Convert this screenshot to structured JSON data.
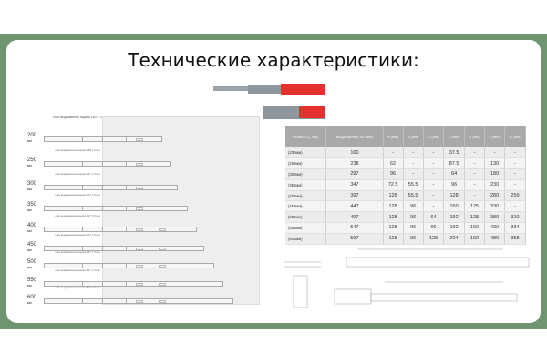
{
  "title": "Технические характеристики:",
  "diagram": {
    "top_caption": "max выдвижение ящика 160 ± 3 мм",
    "depth_caption": "min глубина корпуса = длина направляющей + 10 мм",
    "unit": "мм",
    "rows": [
      {
        "size": "200",
        "ext": ""
      },
      {
        "size": "250",
        "ext": "max выдвижение ящика 238 ± 3 мм"
      },
      {
        "size": "300",
        "ext": "max выдвижение ящика 297 ± 3 мм"
      },
      {
        "size": "350",
        "ext": "max выдвижение ящика 347 ± 3 мм"
      },
      {
        "size": "400",
        "ext": "max выдвижение ящика 397 ± 3 мм"
      },
      {
        "size": "450",
        "ext": "max выдвижение ящика 447 ± 3 мм"
      },
      {
        "size": "500",
        "ext": "max выдвижение ящика 497 ± 3 мм"
      },
      {
        "size": "550",
        "ext": "max выдвижение ящика 547 ± 3 мм"
      },
      {
        "size": "600",
        "ext": "max выдвижение ящика 597 ± 3 мм"
      }
    ]
  },
  "table": {
    "headers": [
      "Размер (L, мм)",
      "Выдвижение ±3 (мм)",
      "A (мм)",
      "B (мм)",
      "C (мм)",
      "D (мм)",
      "E (мм)",
      "F (мм)",
      "G (мм)"
    ],
    "rows": [
      [
        "(200мм)",
        "160",
        "-",
        "-",
        "-",
        "37.5",
        "-",
        "-",
        "-"
      ],
      [
        "(250мм)",
        "238",
        "62",
        "-",
        "-",
        "87.5",
        "-",
        "130",
        "-"
      ],
      [
        "(300мм)",
        "297",
        "96",
        "-",
        "-",
        "64",
        "-",
        "180",
        "-"
      ],
      [
        "(350мм)",
        "347",
        "72.5",
        "55.5",
        "-",
        "96",
        "-",
        "230",
        "-"
      ],
      [
        "(400мм)",
        "397",
        "128",
        "55.5",
        "-",
        "128",
        "-",
        "280",
        "259"
      ],
      [
        "(450мм)",
        "447",
        "128",
        "96",
        "-",
        "160",
        "125",
        "330",
        "-"
      ],
      [
        "(500мм)",
        "497",
        "128",
        "96",
        "64",
        "192",
        "128",
        "380",
        "310"
      ],
      [
        "(550мм)",
        "547",
        "128",
        "96",
        "96",
        "192",
        "192",
        "430",
        "334"
      ],
      [
        "(600мм)",
        "597",
        "128",
        "96",
        "128",
        "224",
        "192",
        "480",
        "358"
      ]
    ]
  }
}
